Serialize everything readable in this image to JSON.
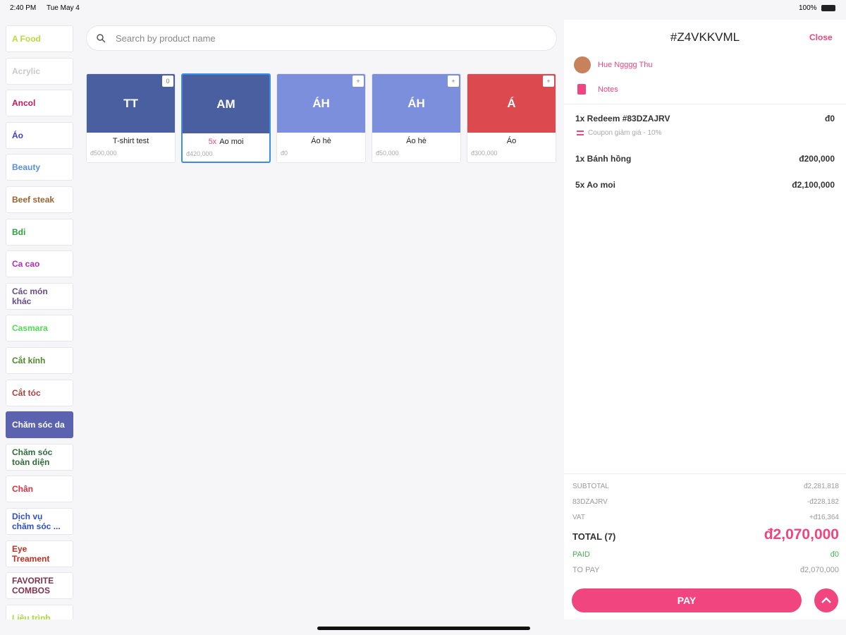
{
  "status_bar": {
    "time": "2:40 PM",
    "date": "Tue May 4",
    "battery": "100%"
  },
  "categories": [
    {
      "label": "A Food",
      "color": "#b9dc3c"
    },
    {
      "label": "Acrylic",
      "color": "#c9c9c9"
    },
    {
      "label": "Ancol",
      "color": "#c2185b"
    },
    {
      "label": "Áo",
      "color": "#3f3fc0"
    },
    {
      "label": "Beauty",
      "color": "#5b8ee6"
    },
    {
      "label": "Beef steak",
      "color": "#a0622d"
    },
    {
      "label": "Bdi",
      "color": "#2e9e3e"
    },
    {
      "label": "Ca cao",
      "color": "#b030b0"
    },
    {
      "label": "Các món khác",
      "color": "#6a4a8a"
    },
    {
      "label": "Casmara",
      "color": "#4ee04e"
    },
    {
      "label": "Cắt kính",
      "color": "#4a8a2a"
    },
    {
      "label": "Cắt tóc",
      "color": "#b04040"
    },
    {
      "label": "Chăm sóc da",
      "color": "#ffffff",
      "selected": true
    },
    {
      "label": "Chăm sóc toàn diện",
      "color": "#2e6b3a"
    },
    {
      "label": "Chân",
      "color": "#e03040"
    },
    {
      "label": "Dịch vụ chăm sóc ...",
      "color": "#3050c0"
    },
    {
      "label": "Eye Treament",
      "color": "#c03020"
    },
    {
      "label": "FAVORITE COMBOS",
      "color": "#803050"
    },
    {
      "label": "Liệu trình",
      "color": "#a8dc3c"
    }
  ],
  "search": {
    "placeholder": "Search by product name"
  },
  "products": [
    {
      "initials": "TT",
      "name": "T-shirt test",
      "price": "đ500,000",
      "color": "#4a5fa0",
      "badge": "0"
    },
    {
      "initials": "AM",
      "quantity": "5x",
      "name": "Ao moi",
      "price": "đ420,000",
      "color": "#4a5fa0",
      "selected": true
    },
    {
      "initials": "ÁH",
      "name": "Áo hè",
      "price": "đ0",
      "color": "#7b8fdc",
      "badge": "+"
    },
    {
      "initials": "ÁH",
      "name": "Áo hè",
      "price": "đ50,000",
      "color": "#7b8fdc",
      "badge": "+"
    },
    {
      "initials": "Á",
      "name": "Áo",
      "price": "đ300,000",
      "color": "#dc4a50",
      "badge": "+"
    }
  ],
  "order": {
    "code": "#Z4VKKVML",
    "close": "Close",
    "customer": "Hue Ngggg Thu",
    "notes": "Notes",
    "items": [
      {
        "name": "1x Redeem #83DZAJRV",
        "amount": "đ0",
        "detail": "Coupon giảm giá - 10%"
      },
      {
        "name": "1x Bánh hồng",
        "amount": "đ200,000"
      },
      {
        "name": "5x Ao moi",
        "amount": "đ2,100,000"
      }
    ],
    "summary": [
      {
        "label": "SUBTOTAL",
        "value": "đ2,281,818"
      },
      {
        "label": "83DZAJRV",
        "value": "-đ228,182"
      },
      {
        "label": "VAT",
        "value": "+đ16,364"
      }
    ],
    "total": {
      "label": "TOTAL (7)",
      "value": "đ2,070,000"
    },
    "paid": {
      "label": "PAID",
      "value": "đ0"
    },
    "to_pay": {
      "label": "TO PAY",
      "value": "đ2,070,000"
    },
    "pay_button": "PAY"
  }
}
